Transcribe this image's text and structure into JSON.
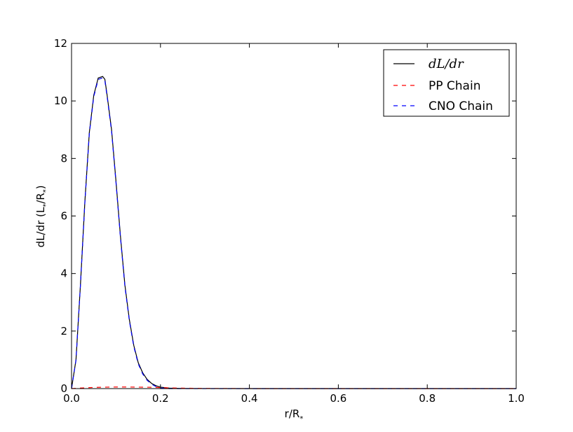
{
  "chart_data": {
    "type": "line",
    "xlabel": "r/R",
    "xlabel_sub": "*",
    "ylabel_main": "dL/dr (L",
    "ylabel_sub1": "*",
    "ylabel_mid": "/R",
    "ylabel_sub2": "*",
    "ylabel_end": ")",
    "xlim": [
      0.0,
      1.0
    ],
    "ylim": [
      0,
      12
    ],
    "xticks": [
      0.0,
      0.2,
      0.4,
      0.6,
      0.8,
      1.0
    ],
    "xtick_labels": [
      "0.0",
      "0.2",
      "0.4",
      "0.6",
      "0.8",
      "1.0"
    ],
    "yticks": [
      0,
      2,
      4,
      6,
      8,
      10,
      12
    ],
    "ytick_labels": [
      "0",
      "2",
      "4",
      "6",
      "8",
      "10",
      "12"
    ],
    "grid": false,
    "legend_position": "top-right",
    "series": [
      {
        "name": "dL/dr",
        "color": "#000000",
        "style": "solid",
        "x": [
          0.0,
          0.01,
          0.02,
          0.03,
          0.04,
          0.05,
          0.06,
          0.07,
          0.075,
          0.08,
          0.09,
          0.1,
          0.11,
          0.12,
          0.13,
          0.14,
          0.15,
          0.16,
          0.17,
          0.18,
          0.19,
          0.2,
          0.22,
          0.25,
          0.3,
          0.4,
          0.6,
          0.8,
          1.0
        ],
        "y": [
          0.0,
          1.0,
          3.6,
          6.5,
          8.9,
          10.2,
          10.8,
          10.85,
          10.75,
          10.2,
          9.0,
          7.2,
          5.3,
          3.6,
          2.4,
          1.5,
          0.9,
          0.55,
          0.32,
          0.18,
          0.1,
          0.05,
          0.015,
          0.004,
          0.001,
          0.0,
          0.0,
          0.0,
          0.0
        ]
      },
      {
        "name": "PP Chain",
        "color": "#ff0000",
        "style": "dashed",
        "x": [
          0.0,
          0.02,
          0.05,
          0.08,
          0.1,
          0.12,
          0.15,
          0.18,
          0.2,
          0.22,
          0.25,
          0.3,
          0.4,
          0.6,
          0.8,
          1.0
        ],
        "y": [
          0.0,
          0.02,
          0.04,
          0.05,
          0.055,
          0.055,
          0.05,
          0.045,
          0.035,
          0.025,
          0.015,
          0.006,
          0.001,
          0.0,
          0.0,
          0.0
        ]
      },
      {
        "name": "CNO Chain",
        "color": "#0000ff",
        "style": "dashed",
        "x": [
          0.0,
          0.01,
          0.02,
          0.03,
          0.04,
          0.05,
          0.06,
          0.07,
          0.075,
          0.08,
          0.09,
          0.1,
          0.11,
          0.12,
          0.13,
          0.14,
          0.15,
          0.16,
          0.17,
          0.18,
          0.19,
          0.2,
          0.22,
          0.25,
          0.3,
          0.4,
          0.6,
          0.8,
          1.0
        ],
        "y": [
          0.0,
          0.98,
          3.58,
          6.47,
          8.86,
          10.15,
          10.75,
          10.8,
          10.7,
          10.15,
          8.95,
          7.15,
          5.25,
          3.55,
          2.36,
          1.46,
          0.86,
          0.51,
          0.29,
          0.15,
          0.07,
          0.02,
          0.0,
          0.0,
          0.0,
          0.0,
          0.0,
          0.0,
          0.0
        ]
      }
    ],
    "legend": [
      {
        "label": "dL/dr",
        "color": "#000000",
        "style": "solid",
        "math": true
      },
      {
        "label": "PP Chain",
        "color": "#ff0000",
        "style": "dashed",
        "math": false
      },
      {
        "label": "CNO Chain",
        "color": "#0000ff",
        "style": "dashed",
        "math": false
      }
    ]
  }
}
